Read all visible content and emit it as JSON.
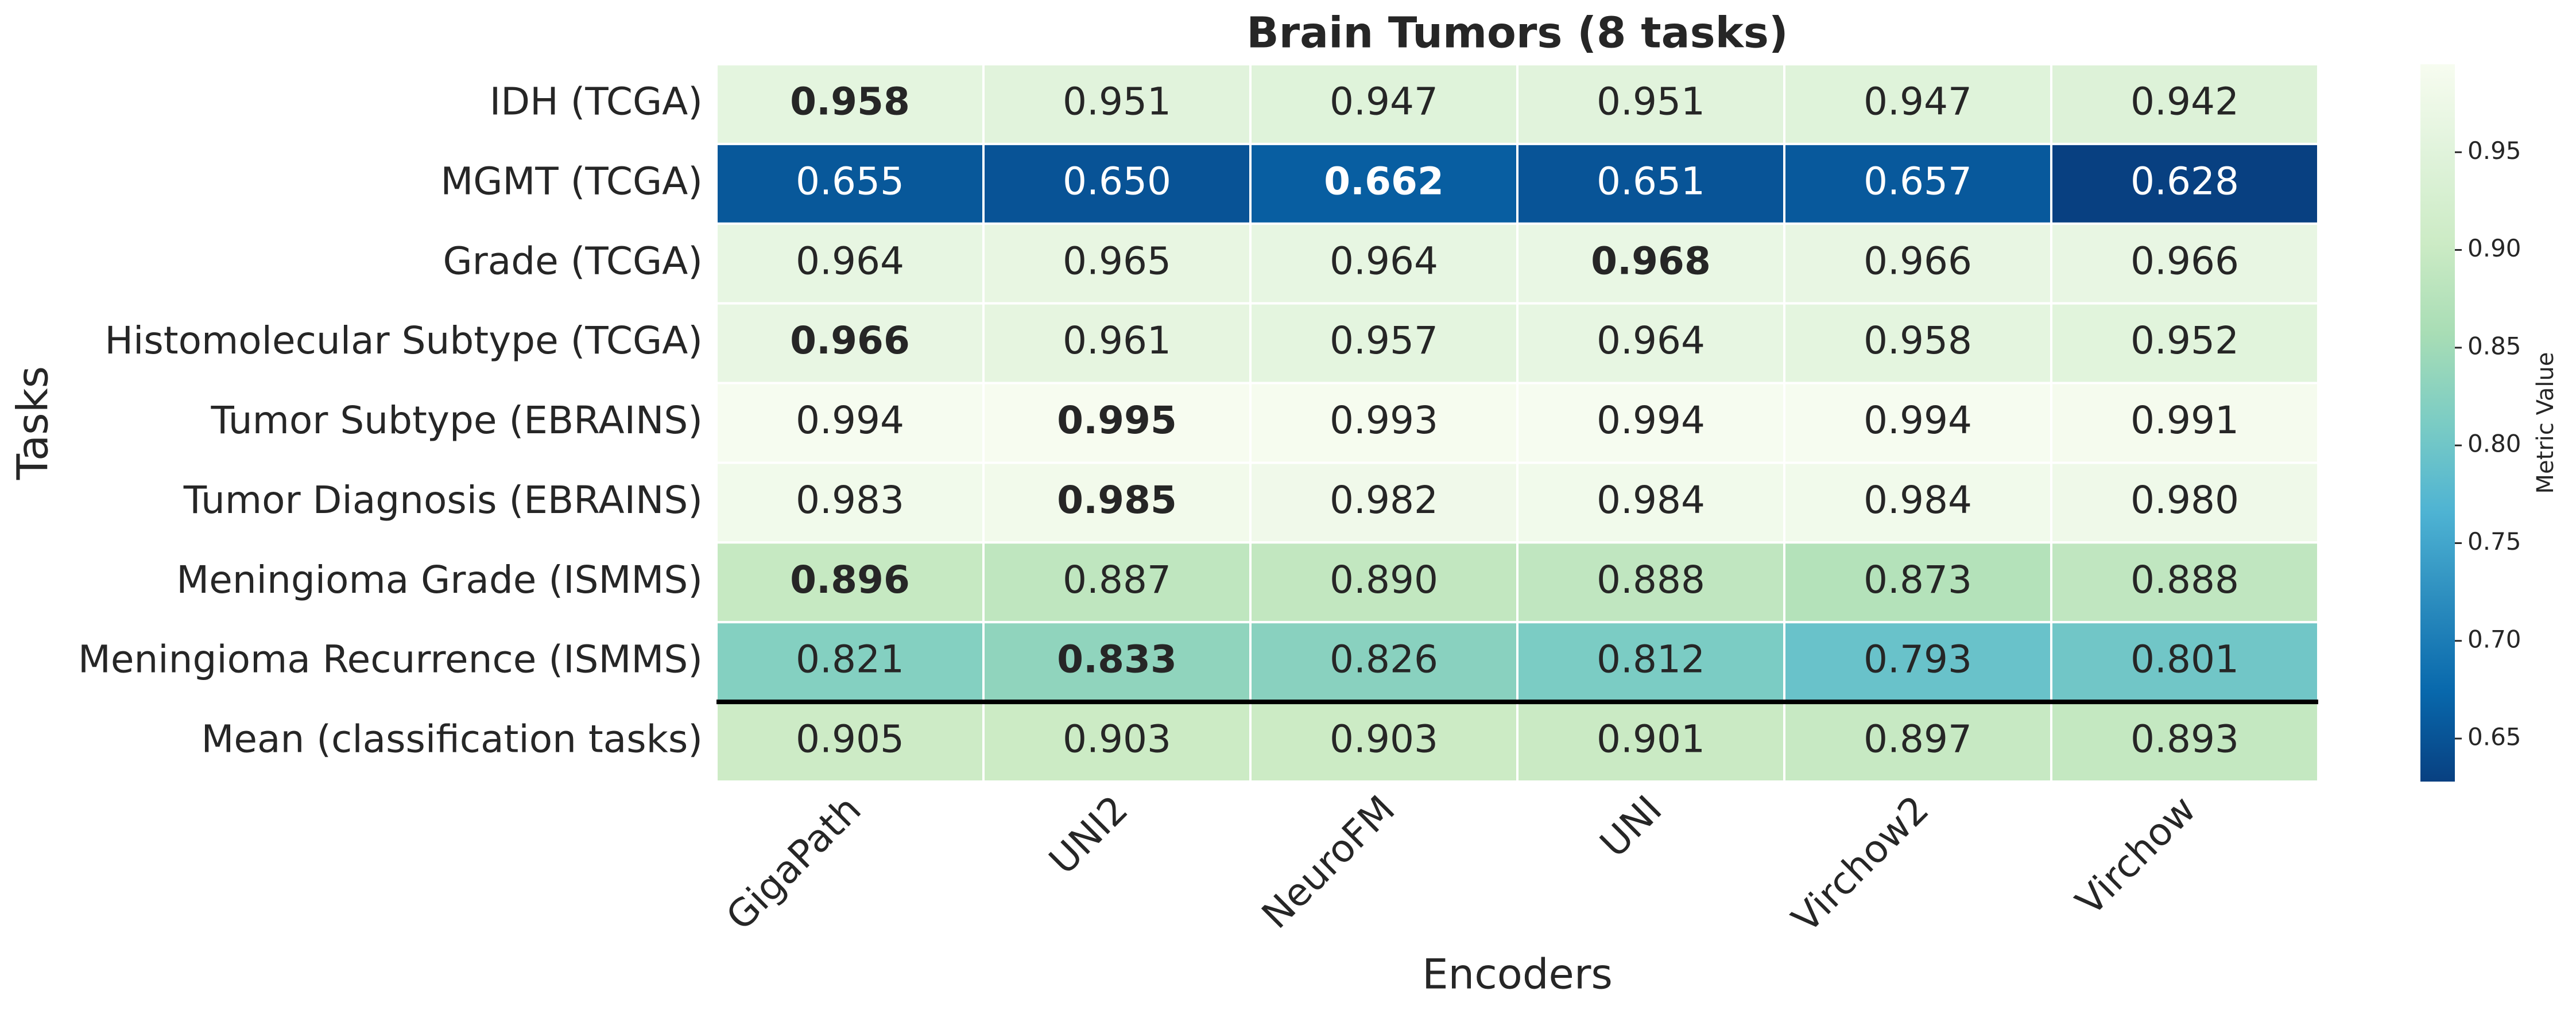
{
  "chart_data": {
    "type": "heatmap",
    "title": "Brain Tumors (8 tasks)",
    "x_label": "Encoders",
    "y_label": "Tasks",
    "colorbar_label": "Metric Value",
    "categories": [
      "GigaPath",
      "UNI2",
      "NeuroFM",
      "UNI",
      "Virchow2",
      "Virchow"
    ],
    "rows": [
      "IDH (TCGA)",
      "MGMT (TCGA)",
      "Grade (TCGA)",
      "Histomolecular Subtype (TCGA)",
      "Tumor Subtype (EBRAINS)",
      "Tumor Diagnosis (EBRAINS)",
      "Meningioma Grade (ISMMS)",
      "Meningioma Recurrence (ISMMS)",
      "Mean (classification tasks)"
    ],
    "values": [
      [
        0.958,
        0.951,
        0.947,
        0.951,
        0.947,
        0.942
      ],
      [
        0.655,
        0.65,
        0.662,
        0.651,
        0.657,
        0.628
      ],
      [
        0.964,
        0.965,
        0.964,
        0.968,
        0.966,
        0.966
      ],
      [
        0.966,
        0.961,
        0.957,
        0.964,
        0.958,
        0.952
      ],
      [
        0.994,
        0.995,
        0.993,
        0.994,
        0.994,
        0.991
      ],
      [
        0.983,
        0.985,
        0.982,
        0.984,
        0.984,
        0.98
      ],
      [
        0.896,
        0.887,
        0.89,
        0.888,
        0.873,
        0.888
      ],
      [
        0.821,
        0.833,
        0.826,
        0.812,
        0.793,
        0.801
      ],
      [
        0.905,
        0.903,
        0.903,
        0.901,
        0.897,
        0.893
      ]
    ],
    "value_labels": [
      [
        "0.958",
        "0.951",
        "0.947",
        "0.951",
        "0.947",
        "0.942"
      ],
      [
        "0.655",
        "0.650",
        "0.662",
        "0.651",
        "0.657",
        "0.628"
      ],
      [
        "0.964",
        "0.965",
        "0.964",
        "0.968",
        "0.966",
        "0.966"
      ],
      [
        "0.966",
        "0.961",
        "0.957",
        "0.964",
        "0.958",
        "0.952"
      ],
      [
        "0.994",
        "0.995",
        "0.993",
        "0.994",
        "0.994",
        "0.991"
      ],
      [
        "0.983",
        "0.985",
        "0.982",
        "0.984",
        "0.984",
        "0.980"
      ],
      [
        "0.896",
        "0.887",
        "0.890",
        "0.888",
        "0.873",
        "0.888"
      ],
      [
        "0.821",
        "0.833",
        "0.826",
        "0.812",
        "0.793",
        "0.801"
      ],
      [
        "0.905",
        "0.903",
        "0.903",
        "0.901",
        "0.897",
        "0.893"
      ]
    ],
    "bold": [
      [
        true,
        false,
        false,
        false,
        false,
        false
      ],
      [
        false,
        false,
        true,
        false,
        false,
        false
      ],
      [
        false,
        false,
        false,
        true,
        false,
        false
      ],
      [
        true,
        false,
        false,
        false,
        false,
        false
      ],
      [
        false,
        true,
        false,
        false,
        false,
        false
      ],
      [
        false,
        true,
        false,
        false,
        false,
        false
      ],
      [
        true,
        false,
        false,
        false,
        false,
        false
      ],
      [
        false,
        true,
        false,
        false,
        false,
        false
      ],
      [
        false,
        false,
        false,
        false,
        false,
        false
      ]
    ],
    "separator_above_last_row": true,
    "colormap": [
      "#084081",
      "#0868ac",
      "#2b8cbe",
      "#4eb3d3",
      "#7bccc4",
      "#a8ddb5",
      "#ccebc5",
      "#e0f3db",
      "#f7fcf0"
    ],
    "clim": [
      0.628,
      0.995
    ],
    "cticks": [
      0.65,
      {
        "value": 0.7,
        "label": "0.70"
      },
      0.75,
      {
        "value": 0.8,
        "label": "0.80"
      },
      0.85,
      {
        "value": 0.9,
        "label": "0.90"
      },
      0.95
    ]
  }
}
